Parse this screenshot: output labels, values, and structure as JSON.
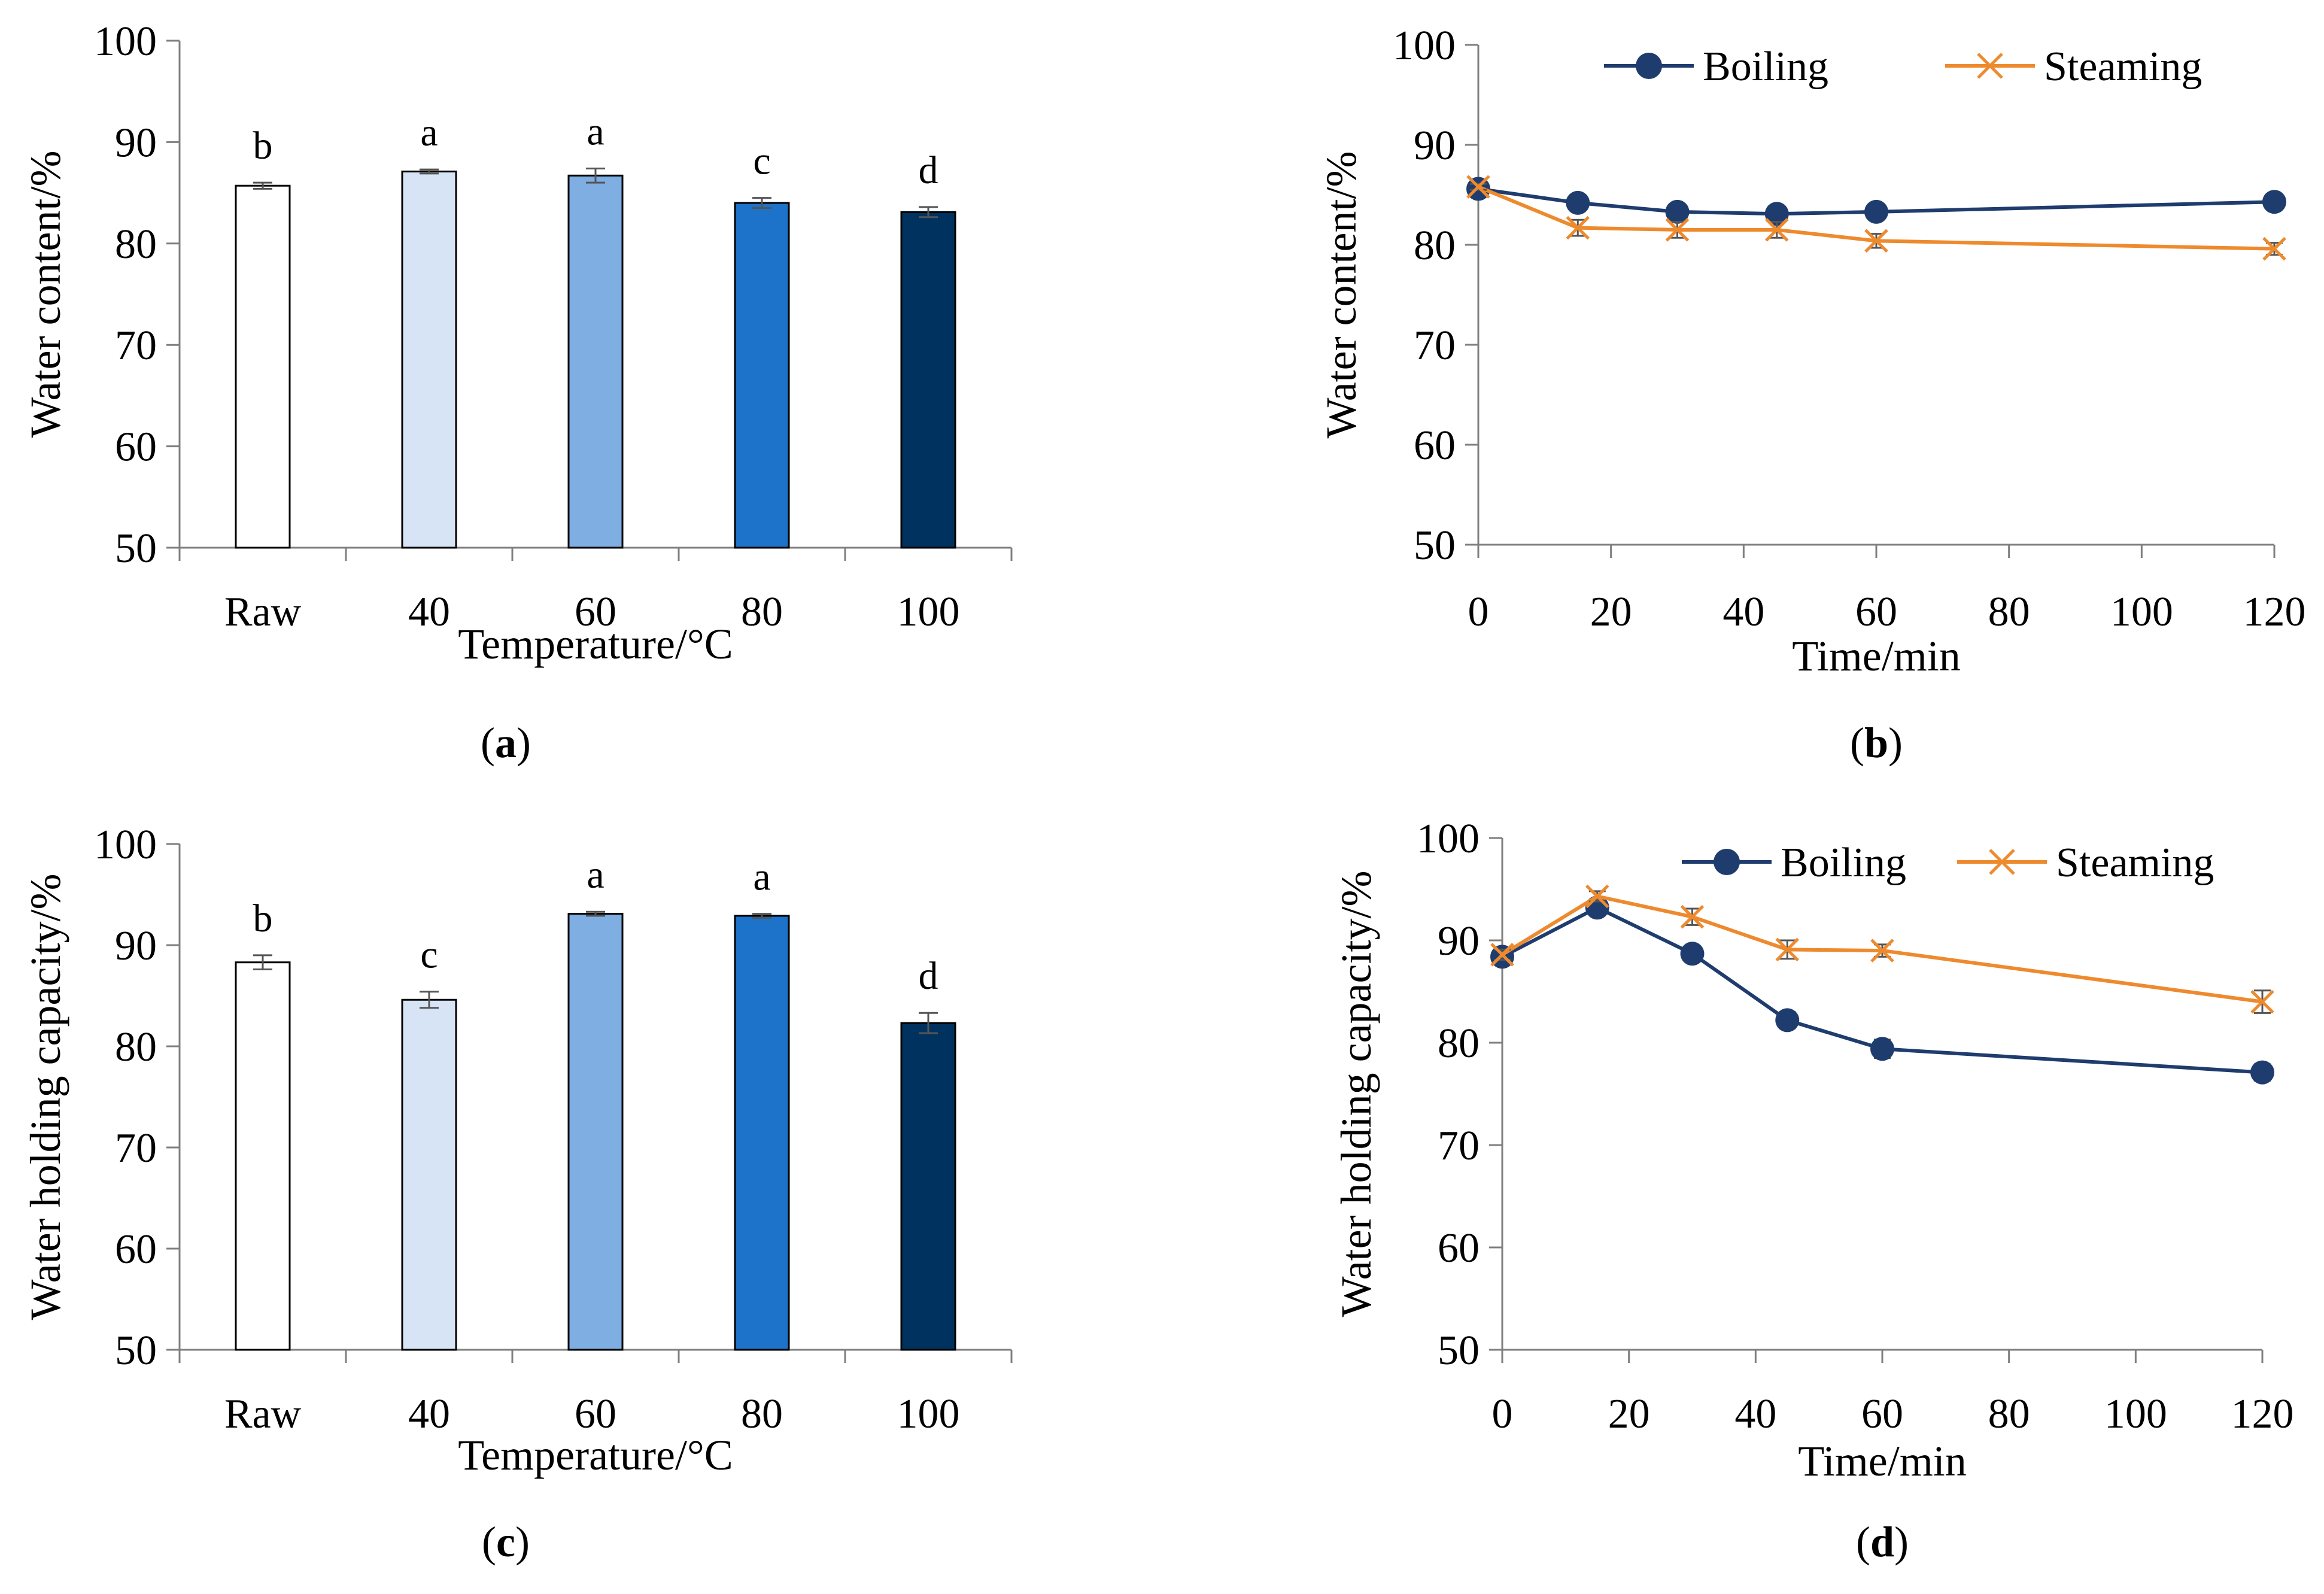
{
  "chart_data": [
    {
      "panel": "a",
      "type": "bar",
      "categories": [
        "Raw",
        "40",
        "60",
        "80",
        "100"
      ],
      "values": [
        85.7,
        87.1,
        86.7,
        84.0,
        83.1
      ],
      "errors": [
        0.3,
        0.2,
        0.7,
        0.5,
        0.5
      ],
      "letters": [
        "b",
        "a",
        "a",
        "c",
        "d"
      ],
      "colors": [
        "#ffffff",
        "#d6e4f5",
        "#7faee3",
        "#1c73c9",
        "#00325f"
      ],
      "xlabel": "Temperature/°C",
      "ylabel": "Water content/%",
      "ylim": [
        50,
        100
      ],
      "yticks": [
        "50",
        "60",
        "70",
        "80",
        "90",
        "100"
      ],
      "label": "(a)"
    },
    {
      "panel": "b",
      "type": "line",
      "x": [
        0,
        15,
        30,
        45,
        60,
        120
      ],
      "series": [
        {
          "name": "Boiling",
          "values": [
            85.6,
            84.2,
            83.3,
            83.1,
            83.3,
            84.3
          ],
          "errors": [
            0.3,
            0.3,
            0.3,
            0.3,
            0.3,
            0.3
          ],
          "color": "#1f3c6e",
          "marker": "circle"
        },
        {
          "name": "Steaming",
          "values": [
            85.8,
            81.7,
            81.5,
            81.5,
            80.4,
            79.6
          ],
          "errors": [
            0.3,
            0.8,
            0.8,
            0.8,
            0.7,
            0.6
          ],
          "color": "#ee8a2e",
          "marker": "x"
        }
      ],
      "xlabel": "Time/min",
      "ylabel": "Water content/%",
      "xlim": [
        0,
        120
      ],
      "xticks": [
        "0",
        "20",
        "40",
        "60",
        "80",
        "100",
        "120"
      ],
      "ylim": [
        50,
        100
      ],
      "yticks": [
        "50",
        "60",
        "70",
        "80",
        "90",
        "100"
      ],
      "legend": "top",
      "label": "(b)"
    },
    {
      "panel": "c",
      "type": "bar",
      "categories": [
        "Raw",
        "40",
        "60",
        "80",
        "100"
      ],
      "values": [
        88.3,
        84.6,
        93.1,
        92.9,
        82.3
      ],
      "errors": [
        0.7,
        0.8,
        0.2,
        0.2,
        1.0
      ],
      "letters": [
        "b",
        "c",
        "a",
        "a",
        "d"
      ],
      "colors": [
        "#ffffff",
        "#d6e4f5",
        "#7faee3",
        "#1c73c9",
        "#00325f"
      ],
      "xlabel": "Temperature/°C",
      "ylabel": "Water holding capacity/%",
      "ylim": [
        50,
        100
      ],
      "yticks": [
        "50",
        "60",
        "70",
        "80",
        "90",
        "100"
      ],
      "label": "(c)"
    },
    {
      "panel": "d",
      "type": "line",
      "x": [
        0,
        15,
        30,
        45,
        60,
        120
      ],
      "series": [
        {
          "name": "Boiling",
          "values": [
            88.4,
            93.2,
            88.7,
            82.2,
            79.4,
            77.1
          ],
          "errors": [
            0.5,
            0.5,
            0.5,
            0.8,
            0.9,
            0.8
          ],
          "color": "#1f3c6e",
          "marker": "circle"
        },
        {
          "name": "Steaming",
          "values": [
            88.6,
            94.3,
            92.3,
            89.1,
            89.0,
            84.0
          ],
          "errors": [
            0.5,
            0.5,
            0.8,
            0.9,
            0.6,
            1.1
          ],
          "color": "#ee8a2e",
          "marker": "x"
        }
      ],
      "xlabel": "Time/min",
      "ylabel": "Water holding capacity/%",
      "xlim": [
        0,
        120
      ],
      "xticks": [
        "0",
        "20",
        "40",
        "60",
        "80",
        "100",
        "120"
      ],
      "ylim": [
        50,
        100
      ],
      "yticks": [
        "50",
        "60",
        "70",
        "80",
        "90",
        "100"
      ],
      "legend": "top",
      "label": "(d)"
    }
  ]
}
